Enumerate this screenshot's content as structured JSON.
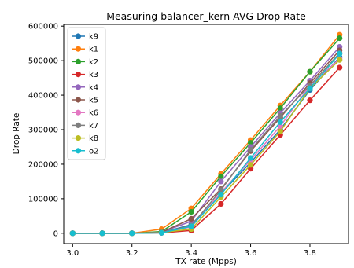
{
  "chart_data": {
    "type": "line",
    "title": "Measuring balancer_kern AVG Drop Rate",
    "xlabel": "TX rate (Mpps)",
    "ylabel": "Drop Rate",
    "xlim": [
      2.97,
      3.93
    ],
    "ylim": [
      -30000,
      605000
    ],
    "xticks": [
      3.0,
      3.2,
      3.4,
      3.6,
      3.8
    ],
    "xtick_labels": [
      "3.0",
      "3.2",
      "3.4",
      "3.6",
      "3.8"
    ],
    "yticks": [
      0,
      100000,
      200000,
      300000,
      400000,
      500000,
      600000
    ],
    "ytick_labels": [
      "0",
      "100000",
      "200000",
      "300000",
      "400000",
      "500000",
      "600000"
    ],
    "grid": false,
    "legend_position": "upper-left",
    "x": [
      3.0,
      3.1,
      3.2,
      3.3,
      3.4,
      3.5,
      3.6,
      3.7,
      3.8,
      3.9
    ],
    "series": [
      {
        "name": "k9",
        "color": "#1f77b4",
        "values": [
          0,
          0,
          0,
          2000,
          25000,
          115000,
          205000,
          300000,
          415000,
          510000
        ]
      },
      {
        "name": "k1",
        "color": "#ff7f0e",
        "values": [
          0,
          0,
          0,
          12000,
          72000,
          172000,
          270000,
          370000,
          468000,
          575000
        ]
      },
      {
        "name": "k2",
        "color": "#2ca02c",
        "values": [
          0,
          0,
          0,
          5000,
          62000,
          165000,
          262000,
          362000,
          468000,
          565000
        ]
      },
      {
        "name": "k3",
        "color": "#d62728",
        "values": [
          0,
          0,
          0,
          1000,
          8000,
          85000,
          187000,
          285000,
          385000,
          480000
        ]
      },
      {
        "name": "k4",
        "color": "#9467bd",
        "values": [
          0,
          0,
          0,
          3000,
          35000,
          150000,
          250000,
          348000,
          442000,
          540000
        ]
      },
      {
        "name": "k5",
        "color": "#8c564b",
        "values": [
          0,
          0,
          0,
          3000,
          42000,
          128000,
          238000,
          335000,
          435000,
          530000
        ]
      },
      {
        "name": "k6",
        "color": "#e377c2",
        "values": [
          0,
          0,
          0,
          2000,
          18000,
          118000,
          212000,
          310000,
          428000,
          505000
        ]
      },
      {
        "name": "k7",
        "color": "#7f7f7f",
        "values": [
          0,
          0,
          0,
          2000,
          22000,
          125000,
          242000,
          340000,
          428000,
          522000
        ]
      },
      {
        "name": "k8",
        "color": "#bcbd22",
        "values": [
          0,
          0,
          0,
          2000,
          12000,
          105000,
          198000,
          295000,
          420000,
          502000
        ]
      },
      {
        "name": "o2",
        "color": "#17becf",
        "values": [
          0,
          0,
          0,
          1000,
          20000,
          112000,
          218000,
          322000,
          420000,
          520000
        ]
      }
    ]
  }
}
